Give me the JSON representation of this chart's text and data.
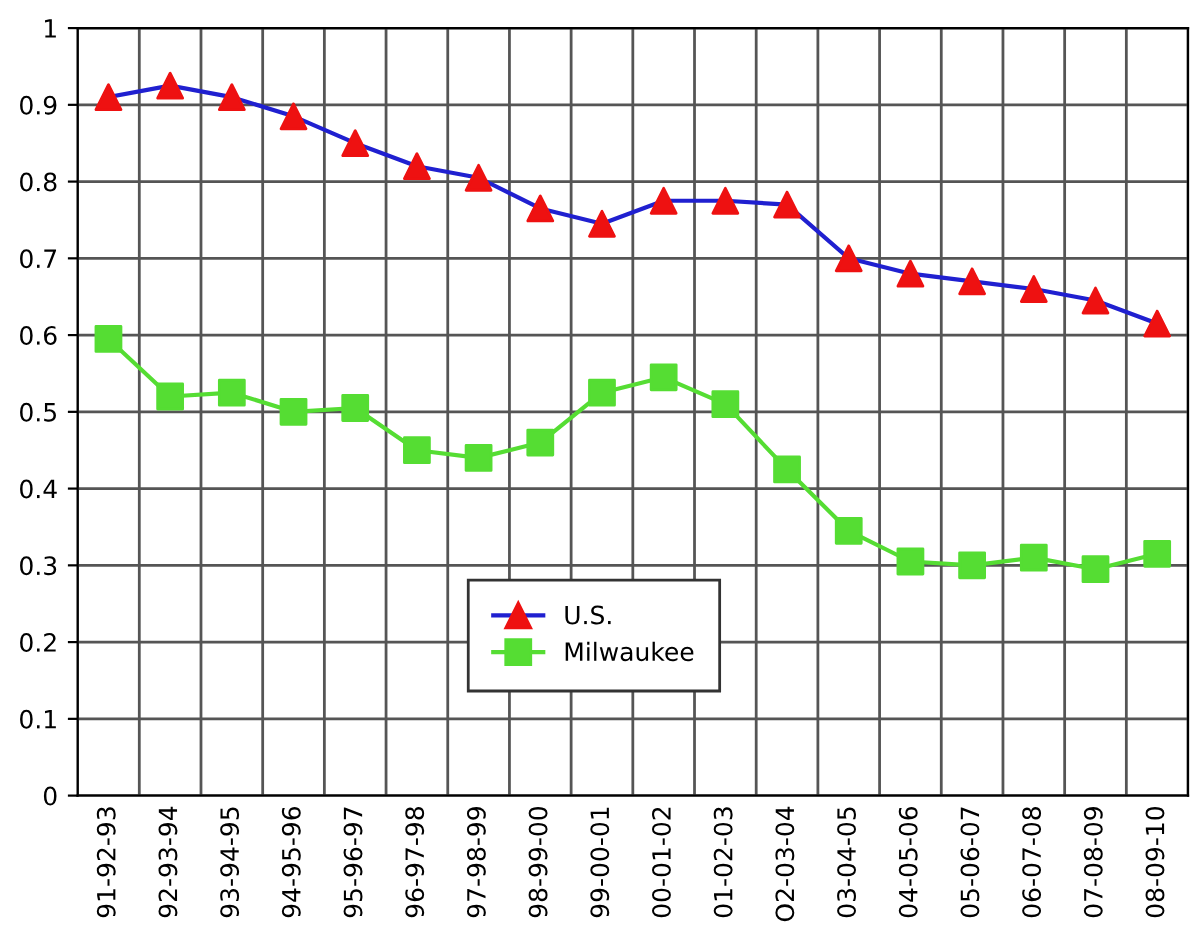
{
  "chart_data": {
    "type": "line",
    "categories": [
      "91-92-93",
      "92-93-94",
      "93-94-95",
      "94-95-96",
      "95-96-97",
      "96-97-98",
      "97-98-99",
      "98-99-00",
      "99-00-01",
      "00-01-02",
      "01-02-03",
      "O2-03-04",
      "03-04-05",
      "04-05-06",
      "05-06-07",
      "06-07-08",
      "07-08-09",
      "08-09-10"
    ],
    "series": [
      {
        "name": "U.S.",
        "color": "#2020d0",
        "colors": [
          "#ee1111",
          "#ee1111",
          "#ee1111",
          "#ee1111",
          "#ee1111",
          "#ee1111",
          "#ee1111",
          "#ee1111",
          "#ee1111",
          "#ee1111",
          "#ee1111",
          "#ee1111",
          "#ee1111",
          "#ee1111",
          "#ee1111",
          "#ee1111",
          "#ee1111",
          "#ee1111"
        ],
        "marker": "triangle",
        "values": [
          0.91,
          0.925,
          0.91,
          0.885,
          0.85,
          0.82,
          0.805,
          0.765,
          0.745,
          0.775,
          0.775,
          0.77,
          0.7,
          0.68,
          0.67,
          0.66,
          0.645,
          0.615
        ]
      },
      {
        "name": "Milwaukee",
        "color": "#55dd33",
        "marker": "square",
        "values": [
          0.595,
          0.52,
          0.525,
          0.5,
          0.505,
          0.45,
          0.44,
          0.46,
          0.525,
          0.545,
          0.51,
          0.425,
          0.345,
          0.305,
          0.3,
          0.31,
          0.295,
          0.315
        ]
      }
    ],
    "ylim": [
      0,
      1
    ],
    "yticks": [
      0,
      0.1,
      0.2,
      0.3,
      0.4,
      0.5,
      0.6,
      0.7,
      0.8,
      0.9,
      1
    ],
    "grid": true,
    "legend": "bottom",
    "line_style": "solid"
  }
}
